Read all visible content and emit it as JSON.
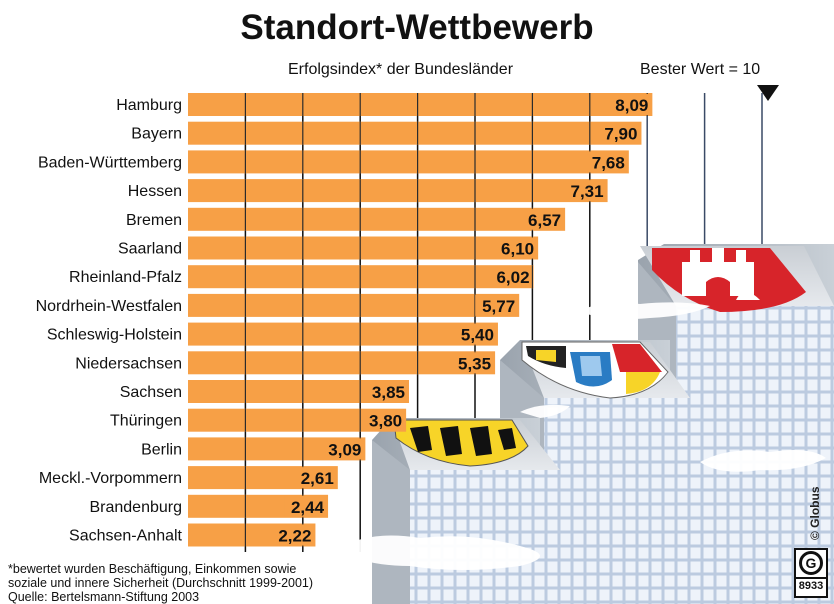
{
  "title": "Standort-Wettbewerb",
  "subtitle": "Erfolgsindex* der Bundesländer",
  "best_value_label": "Bester Wert = 10",
  "footnote": [
    "*bewertet wurden Beschäftigung, Einkommen sowie",
    " soziale und innere Sicherheit (Durchschnitt 1999-2001)",
    "Quelle: Bertelsmann-Stiftung 2003"
  ],
  "copyright": "© Globus",
  "logo": {
    "letter": "G",
    "number": "8933"
  },
  "colors": {
    "bar": "#f7a046",
    "grid": "#111111",
    "skyscraper": "#dfe9f3",
    "background": "#ffffff"
  },
  "icons": [
    "arrow-down-icon",
    "skyscraper-illustration",
    "hamburg-coat-of-arms",
    "bavaria-franconia-coat-of-arms",
    "baden-wuerttemberg-coat-of-arms",
    "cloud-illustration"
  ],
  "chart_data": {
    "type": "bar",
    "orientation": "horizontal",
    "title": "Standort-Wettbewerb",
    "subtitle": "Erfolgsindex* der Bundesländer",
    "xlim": [
      0,
      10
    ],
    "grid": true,
    "categories": [
      "Hamburg",
      "Bayern",
      "Baden-Württemberg",
      "Hessen",
      "Bremen",
      "Saarland",
      "Rheinland-Pfalz",
      "Nordrhein-Westfalen",
      "Schleswig-Holstein",
      "Niedersachsen",
      "Sachsen",
      "Thüringen",
      "Berlin",
      "Meckl.-Vorpommern",
      "Brandenburg",
      "Sachsen-Anhalt"
    ],
    "values": [
      8.09,
      7.9,
      7.68,
      7.31,
      6.57,
      6.1,
      6.02,
      5.77,
      5.4,
      5.35,
      3.85,
      3.8,
      3.09,
      2.61,
      2.44,
      2.22
    ],
    "value_labels": [
      "8,09",
      "7,90",
      "7,68",
      "7,31",
      "6,57",
      "6,10",
      "6,02",
      "5,77",
      "5,40",
      "5,35",
      "3,85",
      "3,80",
      "3,09",
      "2,61",
      "2,44",
      "2,22"
    ]
  }
}
